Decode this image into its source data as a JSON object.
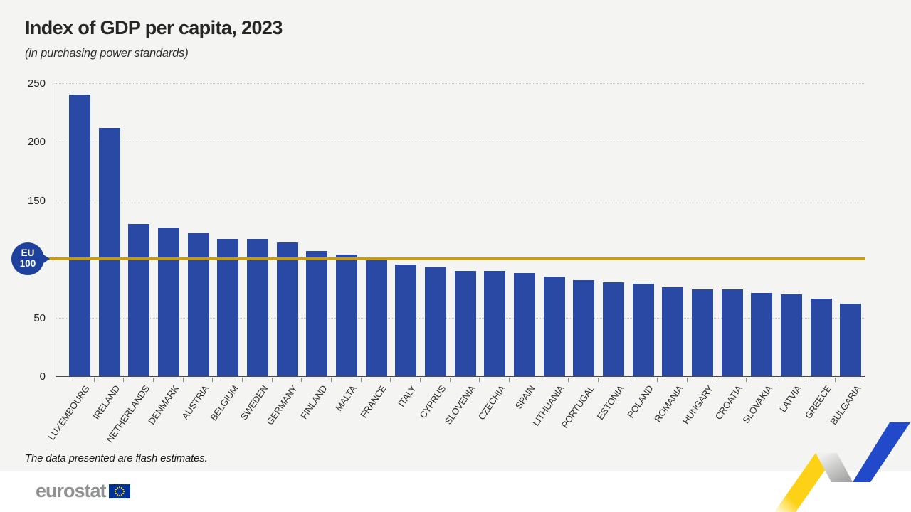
{
  "header": {
    "title": "Index of GDP per capita, 2023",
    "subtitle": "(in purchasing power standards)"
  },
  "chart_data": {
    "type": "bar",
    "title": "Index of GDP per capita, 2023",
    "subtitle": "(in purchasing power standards)",
    "categories": [
      "LUXEMBOURG",
      "IRELAND",
      "NETHERLANDS",
      "DENMARK",
      "AUSTRIA",
      "BELGIUM",
      "SWEDEN",
      "GERMANY",
      "FINLAND",
      "MALTA",
      "FRANCE",
      "ITALY",
      "CYPRUS",
      "SLOVENIA",
      "CZECHIA",
      "SPAIN",
      "LITHUANIA",
      "PORTUGAL",
      "ESTONIA",
      "POLAND",
      "ROMANIA",
      "HUNGARY",
      "CROATIA",
      "SLOVAKIA",
      "LATVIA",
      "GREECE",
      "BULGARIA"
    ],
    "values": [
      240,
      212,
      130,
      127,
      122,
      117,
      117,
      114,
      107,
      104,
      99,
      95,
      93,
      90,
      90,
      88,
      85,
      82,
      80,
      79,
      76,
      74,
      74,
      71,
      70,
      66,
      62
    ],
    "xlabel": "",
    "ylabel": "",
    "ylim": [
      0,
      250
    ],
    "yticks": [
      0,
      50,
      100,
      150,
      200,
      250
    ],
    "grid": "horizontal-dotted",
    "legend": "none",
    "bar_color": "#2a49a5",
    "reference_line": {
      "value": 100,
      "label_top": "EU",
      "label_bottom": "100",
      "color": "#c49c1c"
    }
  },
  "footer": {
    "note": "The data presented are flash estimates.",
    "brand": "eurostat"
  },
  "colors": {
    "background": "#f4f4f2",
    "bar": "#2a49a5",
    "reference_line": "#c49c1c",
    "badge_blue": "#1f419e",
    "eu_flag_blue": "#003399",
    "eu_flag_stars": "#ffcc00",
    "ribbon_yellow": "#fdd116",
    "ribbon_blue": "#2149c9"
  }
}
